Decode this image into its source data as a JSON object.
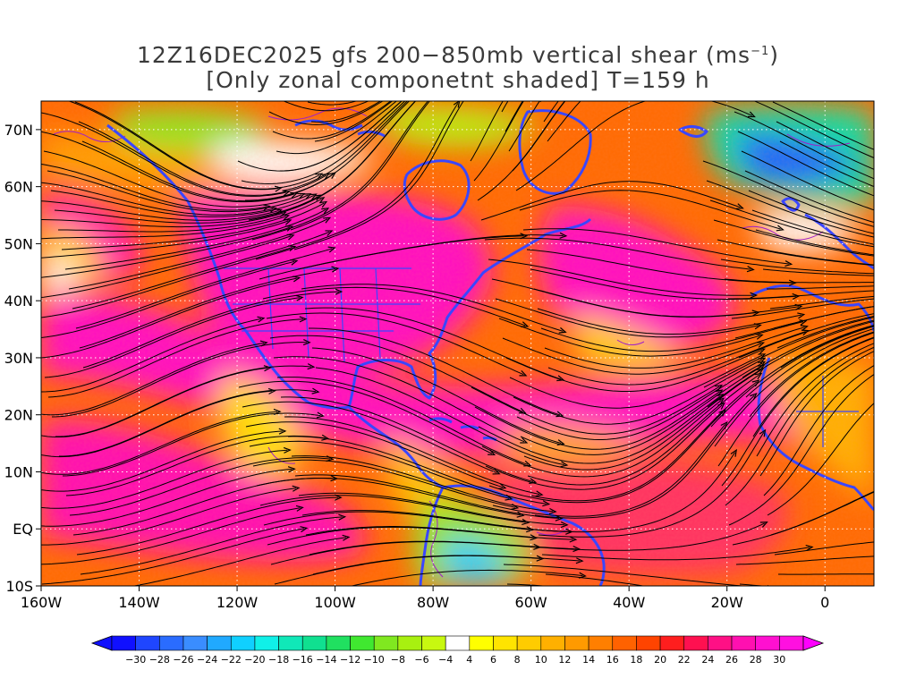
{
  "title": {
    "line1_main": "12Z16DEC2025 gfs 200−850mb vertical shear (ms",
    "line1_exp": "−1",
    "line1_close": ")",
    "line2": "[Only zonal componetnt shaded] T=159 h"
  },
  "axes": {
    "lat_labels": [
      "70N",
      "60N",
      "50N",
      "40N",
      "30N",
      "20N",
      "10N",
      "EQ",
      "10S"
    ],
    "lat_values": [
      70,
      60,
      50,
      40,
      30,
      20,
      10,
      0,
      -10
    ],
    "lon_labels": [
      "160W",
      "140W",
      "120W",
      "100W",
      "80W",
      "60W",
      "40W",
      "20W",
      "0"
    ],
    "lon_values": [
      -160,
      -140,
      -120,
      -100,
      -80,
      -60,
      -40,
      -20,
      0
    ],
    "lon_range": [
      -160,
      10
    ],
    "lat_range": [
      -10,
      75
    ]
  },
  "colorbar": {
    "labels": [
      "−30",
      "−28",
      "−26",
      "−24",
      "−22",
      "−20",
      "−18",
      "−16",
      "−14",
      "−12",
      "−10",
      "−8",
      "−6",
      "−4",
      "4",
      "6",
      "8",
      "10",
      "12",
      "14",
      "16",
      "18",
      "20",
      "22",
      "24",
      "26",
      "28",
      "30"
    ],
    "colors": [
      "#1010ff",
      "#1f46ff",
      "#2a6cff",
      "#3a8dff",
      "#20a9ff",
      "#10d0ff",
      "#10f0e8",
      "#10e8b8",
      "#10e090",
      "#20e060",
      "#40e830",
      "#80e820",
      "#a8f010",
      "#c8f810",
      "#ffffff",
      "#ffff00",
      "#ffe400",
      "#ffcc00",
      "#ffb000",
      "#ff9a00",
      "#ff7f00",
      "#ff6200",
      "#ff4400",
      "#ff1e1e",
      "#ff1050",
      "#ff1085",
      "#ff10b0",
      "#ff10d0",
      "#ff10e0"
    ],
    "low_arrow_color": "#1010ff",
    "high_arrow_color": "#ff00ff"
  },
  "map": {
    "coast_color": "#3a46ff",
    "streamline_color": "#000000",
    "grid_color": "#ffffff",
    "contour_color": "#a020c8"
  }
}
